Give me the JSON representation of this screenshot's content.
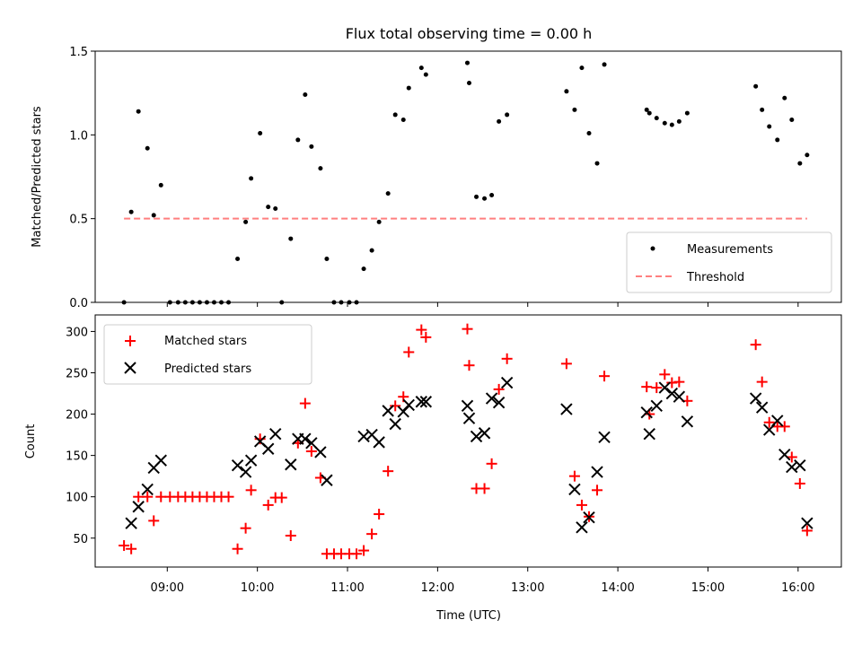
{
  "chart_data": [
    {
      "type": "scatter",
      "title": "Flux total observing time = 0.00 h",
      "xlabel": "",
      "ylabel": "Matched/Predicted stars",
      "xlim": [
        8.2,
        16.48
      ],
      "ylim": [
        0,
        1.5
      ],
      "yticks": [
        0,
        0.5,
        1.0,
        1.5
      ],
      "ytick_labels": [
        "0.0",
        "0.5",
        "1.0",
        "1.5"
      ],
      "legend_position": "lower-right",
      "series": [
        {
          "name": "Measurements",
          "marker": "dot",
          "color": "#000000",
          "points": [
            [
              8.52,
              0.0
            ],
            [
              8.6,
              0.54
            ],
            [
              8.68,
              1.14
            ],
            [
              8.78,
              0.92
            ],
            [
              8.85,
              0.52
            ],
            [
              8.93,
              0.7
            ],
            [
              9.03,
              0.0
            ],
            [
              9.12,
              0.0
            ],
            [
              9.2,
              0.0
            ],
            [
              9.28,
              0.0
            ],
            [
              9.36,
              0.0
            ],
            [
              9.44,
              0.0
            ],
            [
              9.52,
              0.0
            ],
            [
              9.6,
              0.0
            ],
            [
              9.68,
              0.0
            ],
            [
              9.78,
              0.26
            ],
            [
              9.87,
              0.48
            ],
            [
              9.93,
              0.74
            ],
            [
              10.03,
              1.01
            ],
            [
              10.12,
              0.57
            ],
            [
              10.2,
              0.56
            ],
            [
              10.27,
              0.0
            ],
            [
              10.37,
              0.38
            ],
            [
              10.45,
              0.97
            ],
            [
              10.53,
              1.24
            ],
            [
              10.6,
              0.93
            ],
            [
              10.7,
              0.8
            ],
            [
              10.77,
              0.26
            ],
            [
              10.85,
              0.0
            ],
            [
              10.93,
              0.0
            ],
            [
              11.02,
              0.0
            ],
            [
              11.1,
              0.0
            ],
            [
              11.18,
              0.2
            ],
            [
              11.27,
              0.31
            ],
            [
              11.35,
              0.48
            ],
            [
              11.45,
              0.65
            ],
            [
              11.53,
              1.12
            ],
            [
              11.62,
              1.09
            ],
            [
              11.68,
              1.28
            ],
            [
              11.82,
              1.4
            ],
            [
              11.87,
              1.36
            ],
            [
              12.33,
              1.43
            ],
            [
              12.35,
              1.31
            ],
            [
              12.43,
              0.63
            ],
            [
              12.52,
              0.62
            ],
            [
              12.6,
              0.64
            ],
            [
              12.68,
              1.08
            ],
            [
              12.77,
              1.12
            ],
            [
              13.43,
              1.26
            ],
            [
              13.52,
              1.15
            ],
            [
              13.6,
              1.4
            ],
            [
              13.68,
              1.01
            ],
            [
              13.77,
              0.83
            ],
            [
              13.85,
              1.42
            ],
            [
              14.32,
              1.15
            ],
            [
              14.35,
              1.13
            ],
            [
              14.43,
              1.1
            ],
            [
              14.52,
              1.07
            ],
            [
              14.6,
              1.06
            ],
            [
              14.68,
              1.08
            ],
            [
              14.77,
              1.13
            ],
            [
              15.53,
              1.29
            ],
            [
              15.6,
              1.15
            ],
            [
              15.68,
              1.05
            ],
            [
              15.77,
              0.97
            ],
            [
              15.85,
              1.22
            ],
            [
              15.93,
              1.09
            ],
            [
              16.02,
              0.83
            ],
            [
              16.1,
              0.88
            ]
          ]
        },
        {
          "name": "Threshold",
          "type": "line",
          "style": "dashed",
          "color": "#ff7f7f",
          "x": [
            8.52,
            16.1
          ],
          "y": [
            0.5,
            0.5
          ]
        }
      ]
    },
    {
      "type": "scatter",
      "title": "",
      "xlabel": "Time (UTC)",
      "ylabel": "Count",
      "xlim": [
        8.2,
        16.48
      ],
      "ylim": [
        15,
        320
      ],
      "yticks": [
        50,
        100,
        150,
        200,
        250,
        300
      ],
      "ytick_labels": [
        "50",
        "100",
        "150",
        "200",
        "250",
        "300"
      ],
      "xticks": [
        9,
        10,
        11,
        12,
        13,
        14,
        15,
        16
      ],
      "xtick_labels": [
        "09:00",
        "10:00",
        "11:00",
        "12:00",
        "13:00",
        "14:00",
        "15:00",
        "16:00"
      ],
      "legend_position": "top-left",
      "series": [
        {
          "name": "Matched stars",
          "marker": "plus",
          "color": "#ff0000",
          "points": [
            [
              8.52,
              41
            ],
            [
              8.6,
              37
            ],
            [
              8.68,
              100
            ],
            [
              8.78,
              100
            ],
            [
              8.85,
              71
            ],
            [
              8.93,
              100
            ],
            [
              9.03,
              100
            ],
            [
              9.12,
              100
            ],
            [
              9.2,
              100
            ],
            [
              9.28,
              100
            ],
            [
              9.36,
              100
            ],
            [
              9.44,
              100
            ],
            [
              9.52,
              100
            ],
            [
              9.6,
              100
            ],
            [
              9.68,
              100
            ],
            [
              9.78,
              37
            ],
            [
              9.87,
              62
            ],
            [
              9.93,
              108
            ],
            [
              10.03,
              170
            ],
            [
              10.12,
              90
            ],
            [
              10.2,
              99
            ],
            [
              10.27,
              99
            ],
            [
              10.37,
              53
            ],
            [
              10.45,
              165
            ],
            [
              10.53,
              213
            ],
            [
              10.6,
              155
            ],
            [
              10.7,
              123
            ],
            [
              10.77,
              31
            ],
            [
              10.85,
              31
            ],
            [
              10.93,
              31
            ],
            [
              11.02,
              31
            ],
            [
              11.1,
              31
            ],
            [
              11.18,
              35
            ],
            [
              11.27,
              55
            ],
            [
              11.35,
              79
            ],
            [
              11.45,
              131
            ],
            [
              11.53,
              210
            ],
            [
              11.62,
              221
            ],
            [
              11.68,
              275
            ],
            [
              11.82,
              302
            ],
            [
              11.87,
              293
            ],
            [
              12.33,
              303
            ],
            [
              12.35,
              259
            ],
            [
              12.43,
              110
            ],
            [
              12.52,
              110
            ],
            [
              12.6,
              140
            ],
            [
              12.68,
              230
            ],
            [
              12.77,
              267
            ],
            [
              13.43,
              261
            ],
            [
              13.52,
              125
            ],
            [
              13.6,
              90
            ],
            [
              13.68,
              76
            ],
            [
              13.77,
              108
            ],
            [
              13.85,
              246
            ],
            [
              14.32,
              233
            ],
            [
              14.35,
              200
            ],
            [
              14.43,
              232
            ],
            [
              14.52,
              248
            ],
            [
              14.6,
              238
            ],
            [
              14.68,
              239
            ],
            [
              14.77,
              216
            ],
            [
              15.53,
              284
            ],
            [
              15.6,
              239
            ],
            [
              15.68,
              190
            ],
            [
              15.77,
              185
            ],
            [
              15.85,
              185
            ],
            [
              15.93,
              148
            ],
            [
              16.02,
              116
            ],
            [
              16.1,
              59
            ]
          ]
        },
        {
          "name": "Predicted stars",
          "marker": "x",
          "color": "#000000",
          "points": [
            [
              8.6,
              68
            ],
            [
              8.68,
              88
            ],
            [
              8.78,
              109
            ],
            [
              8.85,
              135
            ],
            [
              8.93,
              144
            ],
            [
              9.78,
              138
            ],
            [
              9.87,
              130
            ],
            [
              9.93,
              144
            ],
            [
              10.03,
              167
            ],
            [
              10.12,
              158
            ],
            [
              10.2,
              176
            ],
            [
              10.37,
              139
            ],
            [
              10.45,
              170
            ],
            [
              10.53,
              170
            ],
            [
              10.6,
              165
            ],
            [
              10.7,
              154
            ],
            [
              10.77,
              120
            ],
            [
              11.18,
              173
            ],
            [
              11.27,
              175
            ],
            [
              11.35,
              166
            ],
            [
              11.45,
              204
            ],
            [
              11.53,
              188
            ],
            [
              11.62,
              203
            ],
            [
              11.68,
              211
            ],
            [
              11.82,
              215
            ],
            [
              11.87,
              215
            ],
            [
              12.33,
              210
            ],
            [
              12.35,
              195
            ],
            [
              12.43,
              173
            ],
            [
              12.52,
              177
            ],
            [
              12.6,
              219
            ],
            [
              12.68,
              214
            ],
            [
              12.77,
              238
            ],
            [
              13.43,
              206
            ],
            [
              13.52,
              109
            ],
            [
              13.6,
              63
            ],
            [
              13.68,
              75
            ],
            [
              13.77,
              130
            ],
            [
              13.85,
              172
            ],
            [
              14.32,
              202
            ],
            [
              14.35,
              176
            ],
            [
              14.43,
              210
            ],
            [
              14.52,
              232
            ],
            [
              14.6,
              225
            ],
            [
              14.68,
              221
            ],
            [
              14.77,
              191
            ],
            [
              15.53,
              219
            ],
            [
              15.6,
              208
            ],
            [
              15.68,
              181
            ],
            [
              15.77,
              192
            ],
            [
              15.85,
              151
            ],
            [
              15.93,
              136
            ],
            [
              16.02,
              138
            ],
            [
              16.1,
              68
            ]
          ]
        }
      ]
    }
  ]
}
